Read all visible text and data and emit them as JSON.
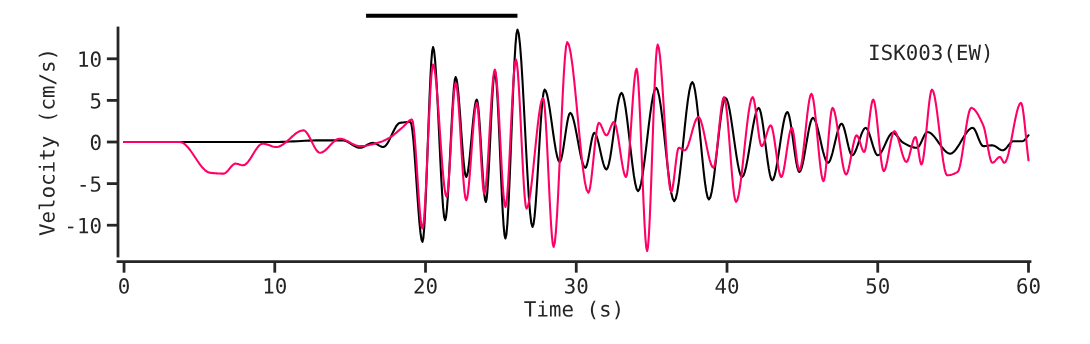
{
  "chart_data": {
    "type": "line",
    "xlabel": "Time (s)",
    "ylabel": "Velocity (cm/s)",
    "annotations": [
      "ISK003(EW)"
    ],
    "xlim": [
      -0.4,
      60.1
    ],
    "xticks": [
      0,
      10,
      20,
      30,
      40,
      50,
      60
    ],
    "ylim": [
      -13.7,
      13.7
    ],
    "yticks": [
      -10,
      -5,
      0,
      5,
      10
    ],
    "grid": false,
    "legend": false,
    "marker": "none",
    "line_style": "solid",
    "series": [
      {
        "color": "#000000",
        "x": [
          0,
          5,
          10,
          13,
          14.5,
          15.65,
          16.5,
          17.2,
          18.3,
          19.0,
          19.8,
          20.5,
          21.3,
          22.0,
          22.7,
          23.4,
          24.0,
          24.6,
          25.3,
          26.1,
          27.1,
          27.9,
          28.9,
          29.6,
          30.6,
          31.2,
          32.0,
          33.0,
          34.1,
          35.3,
          36.5,
          37.7,
          38.8,
          39.9,
          41.0,
          42.1,
          43.0,
          44.0,
          44.8,
          45.7,
          46.7,
          47.6,
          48.3,
          49.2,
          50.0,
          51.0,
          51.7,
          52.6,
          53.3,
          54.8,
          56.3,
          57.0,
          57.6,
          58.3,
          59.0,
          59.6,
          60.0
        ],
        "values": [
          0,
          0,
          0,
          0.2,
          0.2,
          -0.7,
          -0.1,
          -0.6,
          2.3,
          2.4,
          -12.0,
          11.4,
          -9.4,
          7.8,
          -4.2,
          5.1,
          -7.2,
          8.4,
          -11.6,
          13.5,
          -10.2,
          6.3,
          -2.4,
          3.5,
          -3.1,
          1.1,
          -3.3,
          5.9,
          -5.9,
          6.5,
          -7.1,
          7.2,
          -6.9,
          5.3,
          -4.2,
          4.1,
          -4.6,
          3.6,
          -3.6,
          2.9,
          -2.5,
          2.2,
          -1.6,
          1.7,
          -1.6,
          1.1,
          -0.1,
          -0.7,
          1.2,
          -1.4,
          1.7,
          -0.5,
          -0.4,
          -1.0,
          0.1,
          0.1,
          0.8
        ]
      },
      {
        "color": "#ff0066",
        "x": [
          0,
          3.7,
          5.7,
          6.6,
          7.4,
          7.9,
          9.2,
          10.1,
          11.9,
          13.0,
          14.3,
          15.65,
          17.0,
          17.6,
          18.5,
          19.1,
          19.8,
          20.5,
          21.4,
          22.0,
          22.7,
          23.4,
          23.9,
          24.6,
          25.3,
          26.0,
          26.7,
          27.8,
          28.5,
          29.4,
          30.8,
          31.5,
          32.0,
          32.5,
          33.3,
          34.0,
          34.7,
          35.4,
          36.3,
          36.8,
          37.2,
          38.1,
          39.1,
          39.8,
          40.6,
          41.7,
          42.3,
          42.9,
          43.6,
          44.3,
          44.8,
          45.6,
          46.4,
          47.0,
          47.9,
          48.6,
          49.1,
          49.7,
          50.4,
          51.1,
          51.9,
          52.5,
          52.9,
          53.6,
          54.6,
          55.3,
          56.2,
          57.0,
          57.6,
          58.1,
          58.4,
          59.5,
          60.0
        ],
        "values": [
          0,
          0,
          -3.7,
          -3.8,
          -2.6,
          -2.8,
          -0.2,
          -0.6,
          1.4,
          -1.3,
          0.4,
          -0.5,
          0.0,
          0.5,
          1.8,
          2.7,
          -10.4,
          9.3,
          -6.6,
          7.1,
          -7.0,
          4.7,
          -6.2,
          8.7,
          -7.8,
          9.9,
          -8.0,
          5.3,
          -12.6,
          12.0,
          -6.1,
          2.3,
          0.8,
          2.4,
          -4.2,
          8.8,
          -13.1,
          11.7,
          -6.0,
          -0.7,
          -1.0,
          3.0,
          -3.1,
          5.4,
          -7.2,
          5.4,
          -0.5,
          2.0,
          -4.2,
          1.7,
          -3.4,
          5.8,
          -4.7,
          4.1,
          -3.9,
          0.8,
          -1.2,
          5.1,
          -3.5,
          1.3,
          -2.4,
          0.6,
          -2.7,
          6.3,
          -4.0,
          -3.6,
          4.1,
          2.0,
          -2.5,
          -1.8,
          -2.5,
          4.7,
          -2.2
        ]
      }
    ]
  }
}
